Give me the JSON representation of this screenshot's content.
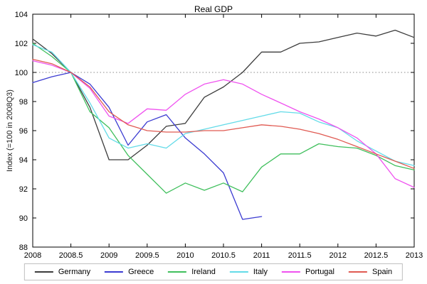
{
  "chart_data": {
    "type": "line",
    "title": "Real GDP",
    "xlabel": "",
    "ylabel": "Index (=100 in 2008Q3)",
    "xlim": [
      2008,
      2013
    ],
    "ylim": [
      88,
      104
    ],
    "grid": false,
    "legend_position": "bottom-horizontal",
    "reference_line": {
      "y": 100,
      "style": "dotted",
      "color": "#888888"
    },
    "xticks": [
      2008,
      2008.5,
      2009,
      2009.5,
      2010,
      2010.5,
      2011,
      2011.5,
      2012,
      2012.5,
      2013
    ],
    "xtick_labels": [
      "2008",
      "2008.5",
      "2009",
      "2009.5",
      "2010",
      "2010.5",
      "2011",
      "2011.5",
      "2012",
      "2012.5",
      "2013"
    ],
    "yticks": [
      88,
      90,
      92,
      94,
      96,
      98,
      100,
      102,
      104
    ],
    "ytick_labels": [
      "88",
      "90",
      "92",
      "94",
      "96",
      "98",
      "100",
      "102",
      "104"
    ],
    "x_start": 2008,
    "x_step": 0.25,
    "series": [
      {
        "name": "Germany",
        "color": "#3c3c3c",
        "values": [
          102.3,
          101.3,
          100.0,
          97.6,
          94.0,
          94.0,
          95.0,
          96.3,
          96.5,
          98.3,
          99.0,
          100.0,
          101.4,
          101.4,
          102.0,
          102.1,
          102.4,
          102.7,
          102.5,
          102.9,
          102.4
        ]
      },
      {
        "name": "Greece",
        "color": "#3b3bd1",
        "values": [
          99.3,
          99.7,
          100.0,
          99.2,
          97.6,
          95.0,
          96.6,
          97.1,
          95.5,
          94.4,
          93.1,
          89.9,
          90.1
        ]
      },
      {
        "name": "Ireland",
        "color": "#3fbf5c",
        "values": [
          102.0,
          101.1,
          100.0,
          97.3,
          96.2,
          94.3,
          93.0,
          91.7,
          92.4,
          91.9,
          92.4,
          91.8,
          93.5,
          94.4,
          94.4,
          95.1,
          94.9,
          94.8,
          94.3,
          93.6,
          93.3
        ]
      },
      {
        "name": "Italy",
        "color": "#63dbe8",
        "values": [
          101.9,
          101.4,
          100.0,
          97.9,
          95.5,
          94.8,
          95.1,
          94.8,
          95.8,
          96.1,
          96.4,
          96.7,
          97.0,
          97.3,
          97.2,
          96.6,
          96.2,
          95.3,
          94.6,
          93.9,
          93.6
        ]
      },
      {
        "name": "Portugal",
        "color": "#ef52ef",
        "values": [
          100.8,
          100.5,
          100.0,
          98.9,
          97.0,
          96.5,
          97.5,
          97.4,
          98.5,
          99.2,
          99.5,
          99.2,
          98.5,
          97.9,
          97.3,
          96.8,
          96.2,
          95.5,
          94.4,
          92.7,
          92.1
        ]
      },
      {
        "name": "Spain",
        "color": "#e05a52",
        "values": [
          100.9,
          100.6,
          100.0,
          99.0,
          97.3,
          96.4,
          96.0,
          95.9,
          95.9,
          96.0,
          96.0,
          96.2,
          96.4,
          96.3,
          96.1,
          95.8,
          95.4,
          94.9,
          94.4,
          93.9,
          93.4
        ]
      }
    ]
  }
}
